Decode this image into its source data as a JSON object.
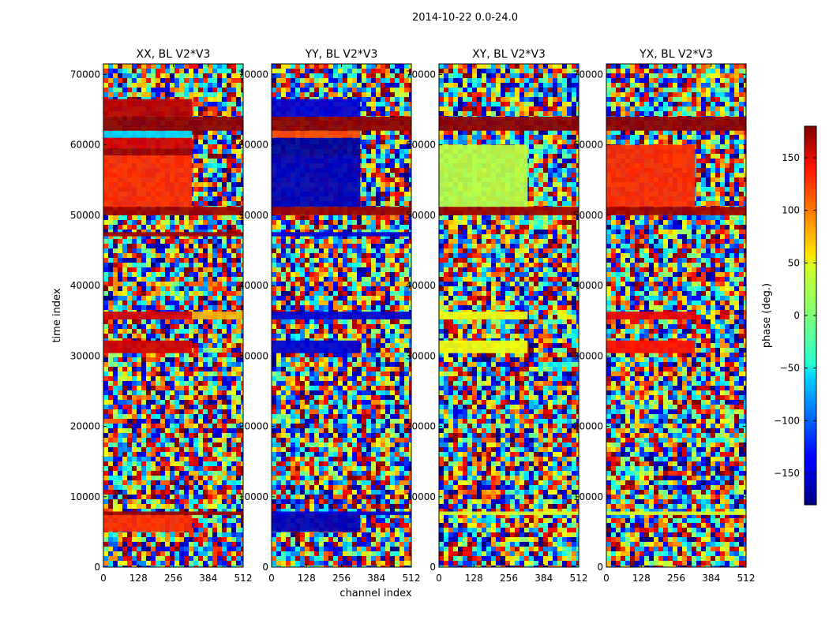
{
  "figure": {
    "suptitle": "2014-10-22 0.0-24.0",
    "ylabel": "time index",
    "xlabel": "channel index"
  },
  "chart_data": [
    {
      "type": "heatmap",
      "title": "XX, BL V2*V3",
      "x_range": [
        0,
        512
      ],
      "y_range": [
        0,
        71500
      ],
      "x_ticks": [
        "0",
        "128",
        "256",
        "384",
        "512"
      ],
      "y_ticks": [
        "0",
        "10000",
        "20000",
        "30000",
        "40000",
        "50000",
        "60000",
        "70000"
      ],
      "value": "phase (deg.)",
      "bands": [
        {
          "t0": 5000,
          "t1": 7400,
          "split_channel": 325,
          "left_phase": 120,
          "right_phase": null
        },
        {
          "t0": 7400,
          "t1": 7900,
          "split_channel": 512,
          "left_phase": 170,
          "right_phase": null
        },
        {
          "t0": 30400,
          "t1": 32200,
          "split_channel": 325,
          "left_phase": 150,
          "right_phase": null
        },
        {
          "t0": 35200,
          "t1": 36300,
          "split_channel": 325,
          "left_phase": 150,
          "right_phase": 70
        },
        {
          "t0": 47000,
          "t1": 47600,
          "split_channel": 512,
          "left_phase": 170,
          "right_phase": 170
        },
        {
          "t0": 50000,
          "t1": 51200,
          "split_channel": 512,
          "left_phase": 170,
          "right_phase": 170
        },
        {
          "t0": 51200,
          "t1": 58500,
          "split_channel": 325,
          "left_phase": 120,
          "right_phase": null
        },
        {
          "t0": 58500,
          "t1": 59500,
          "split_channel": 325,
          "left_phase": 170,
          "right_phase": null
        },
        {
          "t0": 59500,
          "t1": 61000,
          "split_channel": 325,
          "left_phase": 150,
          "right_phase": null
        },
        {
          "t0": 61000,
          "t1": 62000,
          "split_channel": 325,
          "left_phase": -60,
          "right_phase": null
        },
        {
          "t0": 62000,
          "t1": 64000,
          "split_channel": 512,
          "left_phase": 175,
          "right_phase": 175
        },
        {
          "t0": 64000,
          "t1": 66500,
          "split_channel": 325,
          "left_phase": 160,
          "right_phase": null
        }
      ]
    },
    {
      "type": "heatmap",
      "title": "YY, BL V2*V3",
      "x_range": [
        0,
        512
      ],
      "y_range": [
        0,
        71500
      ],
      "x_ticks": [
        "0",
        "128",
        "256",
        "384",
        "512"
      ],
      "y_ticks": [
        "0",
        "10000",
        "20000",
        "30000",
        "40000",
        "50000",
        "60000",
        "70000"
      ],
      "value": "phase (deg.)",
      "bands": [
        {
          "t0": 5000,
          "t1": 7400,
          "split_channel": 325,
          "left_phase": -160,
          "right_phase": null
        },
        {
          "t0": 7400,
          "t1": 7900,
          "split_channel": 512,
          "left_phase": -150,
          "right_phase": null
        },
        {
          "t0": 30400,
          "t1": 32200,
          "split_channel": 325,
          "left_phase": -150,
          "right_phase": null
        },
        {
          "t0": 35200,
          "t1": 36300,
          "split_channel": 512,
          "left_phase": -150,
          "right_phase": -150
        },
        {
          "t0": 47000,
          "t1": 47600,
          "split_channel": 512,
          "left_phase": -150,
          "right_phase": -150
        },
        {
          "t0": 50000,
          "t1": 51200,
          "split_channel": 512,
          "left_phase": 170,
          "right_phase": 170
        },
        {
          "t0": 51200,
          "t1": 58500,
          "split_channel": 325,
          "left_phase": -160,
          "right_phase": null
        },
        {
          "t0": 58500,
          "t1": 59500,
          "split_channel": 325,
          "left_phase": -170,
          "right_phase": null
        },
        {
          "t0": 59500,
          "t1": 61000,
          "split_channel": 325,
          "left_phase": -170,
          "right_phase": null
        },
        {
          "t0": 61000,
          "t1": 62000,
          "split_channel": 325,
          "left_phase": 110,
          "right_phase": null
        },
        {
          "t0": 62000,
          "t1": 64000,
          "split_channel": 512,
          "left_phase": 175,
          "right_phase": 175
        },
        {
          "t0": 64000,
          "t1": 66500,
          "split_channel": 325,
          "left_phase": -150,
          "right_phase": null
        }
      ]
    },
    {
      "type": "heatmap",
      "title": "XY, BL V2*V3",
      "x_range": [
        0,
        512
      ],
      "y_range": [
        0,
        71500
      ],
      "x_ticks": [
        "0",
        "128",
        "256",
        "384",
        "512"
      ],
      "y_ticks": [
        "0",
        "10000",
        "20000",
        "30000",
        "40000",
        "50000",
        "60000",
        "70000"
      ],
      "value": "phase (deg.)",
      "bands": [
        {
          "t0": 5500,
          "t1": 7000,
          "split_channel": 512,
          "left_phase": null,
          "right_phase": null
        },
        {
          "t0": 7400,
          "t1": 7900,
          "split_channel": 512,
          "left_phase": 30,
          "right_phase": null
        },
        {
          "t0": 30400,
          "t1": 32200,
          "split_channel": 325,
          "left_phase": 40,
          "right_phase": null
        },
        {
          "t0": 35200,
          "t1": 36300,
          "split_channel": 325,
          "left_phase": 40,
          "right_phase": null
        },
        {
          "t0": 50000,
          "t1": 51200,
          "split_channel": 512,
          "left_phase": 170,
          "right_phase": 170
        },
        {
          "t0": 51200,
          "t1": 60000,
          "split_channel": 325,
          "left_phase": 20,
          "right_phase": null
        },
        {
          "t0": 62000,
          "t1": 64000,
          "split_channel": 512,
          "left_phase": 175,
          "right_phase": 175
        }
      ]
    },
    {
      "type": "heatmap",
      "title": "YX, BL V2*V3",
      "x_range": [
        0,
        512
      ],
      "y_range": [
        0,
        71500
      ],
      "x_ticks": [
        "0",
        "128",
        "256",
        "384",
        "512"
      ],
      "y_ticks": [
        "0",
        "10000",
        "20000",
        "30000",
        "40000",
        "50000",
        "60000",
        "70000"
      ],
      "value": "phase (deg.)",
      "bands": [
        {
          "t0": 7400,
          "t1": 7900,
          "split_channel": 512,
          "left_phase": 30,
          "right_phase": null
        },
        {
          "t0": 30400,
          "t1": 32200,
          "split_channel": 325,
          "left_phase": 130,
          "right_phase": null
        },
        {
          "t0": 35200,
          "t1": 36300,
          "split_channel": 325,
          "left_phase": 140,
          "right_phase": null
        },
        {
          "t0": 50000,
          "t1": 51200,
          "split_channel": 512,
          "left_phase": 170,
          "right_phase": 170
        },
        {
          "t0": 51200,
          "t1": 60000,
          "split_channel": 325,
          "left_phase": 120,
          "right_phase": null
        },
        {
          "t0": 62000,
          "t1": 64000,
          "split_channel": 512,
          "left_phase": 175,
          "right_phase": 175
        }
      ]
    }
  ],
  "colorbar": {
    "label": "phase (deg.)",
    "range": [
      -180,
      180
    ],
    "colormap": "jet",
    "ticks": [
      "150",
      "100",
      "50",
      "0",
      "−50",
      "−100",
      "−150"
    ],
    "tick_values": [
      150,
      100,
      50,
      0,
      -50,
      -100,
      -150
    ]
  }
}
